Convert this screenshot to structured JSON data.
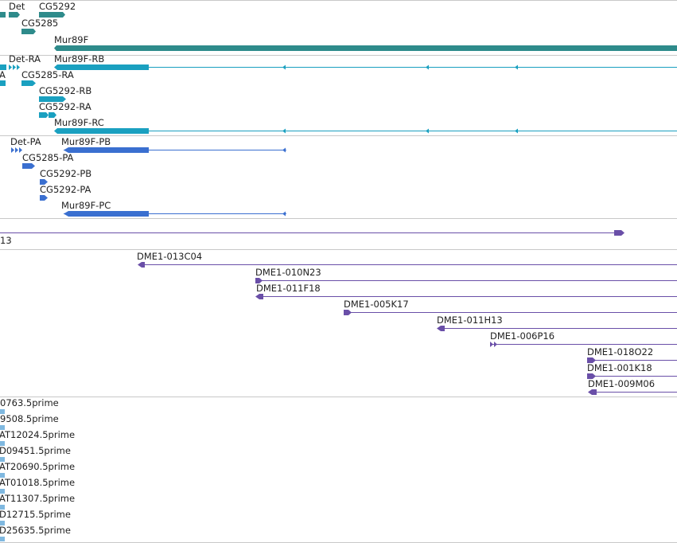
{
  "colors": {
    "gene": "#2e8b8b",
    "transcript": "#1aa0c0",
    "protein": "#3a6fd0",
    "bac": "#6a4fa8",
    "est": "#7fb8e0",
    "separator": "#c8c8c8"
  },
  "tracks": {
    "genes": {
      "labels": [
        "Det",
        "CG5292",
        "CG5285",
        "Mur89F"
      ]
    },
    "transcripts": {
      "labels": [
        "Det-RA",
        "Mur89F-RB",
        "A",
        "CG5285-RA",
        "CG5292-RB",
        "CG5292-RA",
        "Mur89F-RC"
      ]
    },
    "proteins": {
      "labels": [
        "Det-PA",
        "Mur89F-PB",
        "CG5285-PA",
        "CG5292-PB",
        "CG5292-PA",
        "Mur89F-PC"
      ]
    },
    "contig": {
      "labels": [
        "13"
      ]
    },
    "bacs": {
      "labels": [
        "DME1-013C04",
        "DME1-010N23",
        "DME1-011F18",
        "DME1-005K17",
        "DME1-011H13",
        "DME1-006P16",
        "DME1-018O22",
        "DME1-001K18",
        "DME1-009M06"
      ]
    },
    "ests": {
      "labels": [
        "0763.5prime",
        "9508.5prime",
        "AT12024.5prime",
        "D09451.5prime",
        "AT20690.5prime",
        "AT01018.5prime",
        "AT11307.5prime",
        "D12715.5prime",
        "D25635.5prime"
      ]
    }
  }
}
